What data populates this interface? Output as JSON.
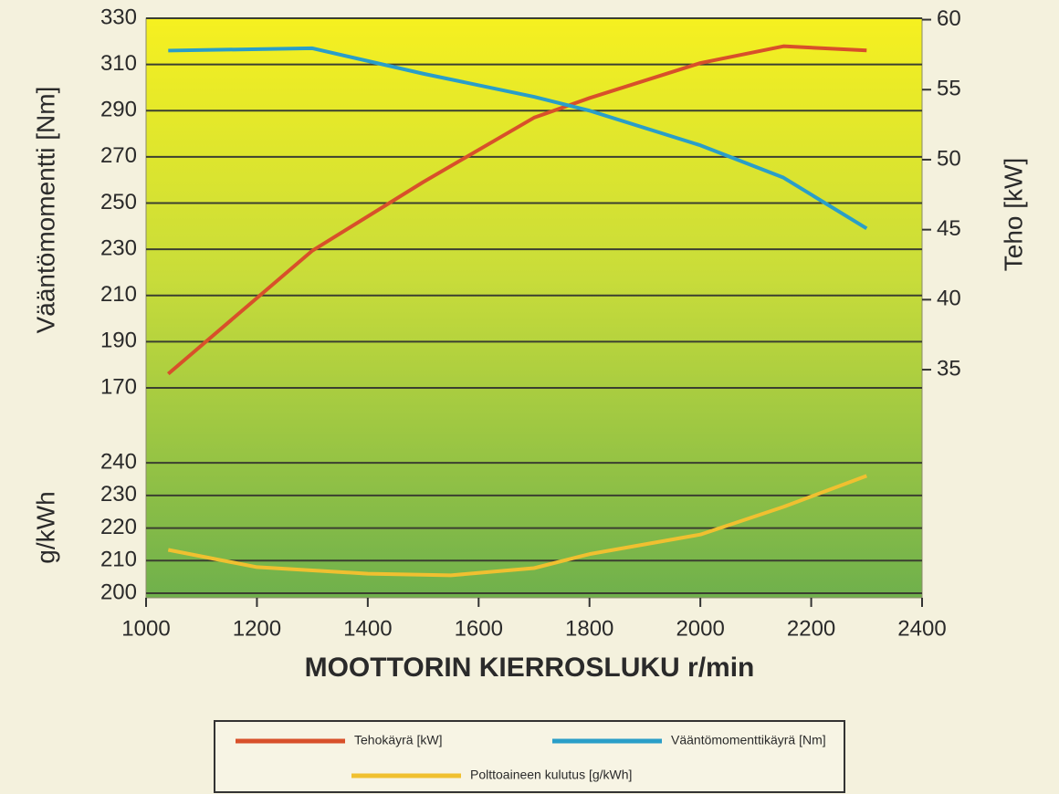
{
  "chart_data": [
    {
      "type": "line",
      "y_label": "Vääntömomentti [Nm]",
      "y2_label": "Teho [kW]",
      "x": [
        1040,
        1300,
        1500,
        1700,
        1800,
        2000,
        2150,
        2300
      ],
      "xlim": [
        1000,
        2400
      ],
      "ylim": [
        170,
        330
      ],
      "yticks": [
        170,
        190,
        210,
        230,
        250,
        270,
        290,
        310,
        330
      ],
      "y2lim": [
        33.7,
        60.1
      ],
      "y2ticks": [
        35,
        40,
        45,
        50,
        55,
        60
      ],
      "grid": true,
      "series": [
        {
          "name": "Tehokäyrä [kW]",
          "color": "#d8502a",
          "axis": "y2",
          "values": [
            34.7,
            43.5,
            48.4,
            53.0,
            54.4,
            56.9,
            58.1,
            57.8
          ]
        },
        {
          "name": "Vääntömomenttikäyrä [Nm]",
          "color": "#2a9ec8",
          "axis": "y",
          "values": [
            316,
            317,
            306,
            296,
            290,
            275,
            261,
            239
          ]
        }
      ]
    },
    {
      "type": "line",
      "y_label": "g/kWh",
      "x_label": "MOOTTORIN KIERROSLUKU r/min",
      "x": [
        1040,
        1200,
        1400,
        1550,
        1700,
        1800,
        2000,
        2150,
        2300
      ],
      "xlim": [
        1000,
        2400
      ],
      "xticks": [
        1000,
        1200,
        1400,
        1600,
        1800,
        2000,
        2200,
        2400
      ],
      "ylim": [
        200,
        242
      ],
      "yticks": [
        200,
        210,
        220,
        230,
        240
      ],
      "grid": true,
      "series": [
        {
          "name": "Polttoaineen kulutus [g/kWh]",
          "color": "#f0c030",
          "axis": "y",
          "values": [
            213.3,
            208,
            206,
            205.5,
            207.7,
            212,
            218,
            226.5,
            236
          ]
        }
      ]
    }
  ]
}
